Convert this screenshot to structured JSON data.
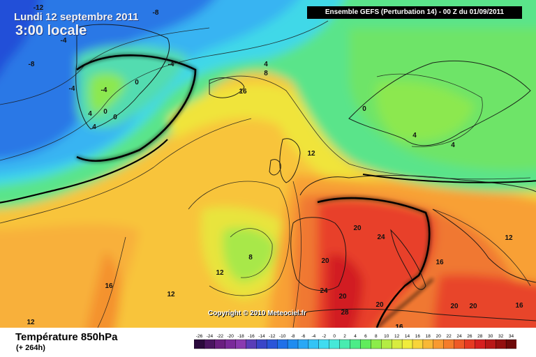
{
  "header": {
    "date_line": "Lundi 12 septembre 2011",
    "time_line": "3:00 locale",
    "run_info": "Ensemble GEFS (Perturbation 14)  -  00 Z du 01/09/2011"
  },
  "footer": {
    "parameter": "Température 850hPa",
    "lead_time": "(+ 264h)",
    "copyright": "Copyright © 2010 Meteociel.fr"
  },
  "legend": {
    "values": [
      "-26",
      "-24",
      "-22",
      "-20",
      "-18",
      "-16",
      "-14",
      "-12",
      "-10",
      "-8",
      "-6",
      "-4",
      "-2",
      "0",
      "2",
      "4",
      "6",
      "8",
      "10",
      "12",
      "14",
      "16",
      "18",
      "20",
      "22",
      "24",
      "26",
      "28",
      "30",
      "32",
      "34"
    ],
    "colors": [
      "#2b0a3d",
      "#4a1560",
      "#6a1f80",
      "#7a2a9a",
      "#8a3ab0",
      "#5a3db8",
      "#3a45c8",
      "#2a55d8",
      "#2070e8",
      "#1f8cf0",
      "#2aa8f5",
      "#34c4f5",
      "#40dcf0",
      "#46e8d8",
      "#48ecb0",
      "#4cec88",
      "#60ec5c",
      "#8cec4a",
      "#b4ec44",
      "#d8ec40",
      "#f0ec3c",
      "#f8d43a",
      "#f8b836",
      "#f89a30",
      "#f47c2a",
      "#ee5a26",
      "#e63a22",
      "#d62020",
      "#b81818",
      "#941010",
      "#6e0a0a"
    ]
  },
  "map": {
    "colors": {
      "ocean_cold": "#2a68e0",
      "cold_mid": "#3aa6f0",
      "cyan": "#45e0e8",
      "green": "#52e88c",
      "green_yellow": "#9ce84a",
      "yellow": "#f0e83a",
      "orange_yellow": "#f8c43a",
      "orange": "#f8a034",
      "red_orange": "#f07030",
      "red": "#e63a28",
      "deep_red": "#cc1e1e"
    },
    "isotherm_labels": [
      "-12",
      "-8",
      "-8",
      "-4",
      "-4",
      "-4",
      "-4",
      "0",
      "4",
      "4",
      "0",
      "0",
      "4",
      "8",
      "16",
      "12",
      "0",
      "4",
      "4",
      "8",
      "12",
      "16",
      "12",
      "12",
      "16",
      "20",
      "24",
      "20",
      "16",
      "24",
      "20",
      "12",
      "28",
      "20",
      "20",
      "20",
      "16",
      "16"
    ]
  }
}
